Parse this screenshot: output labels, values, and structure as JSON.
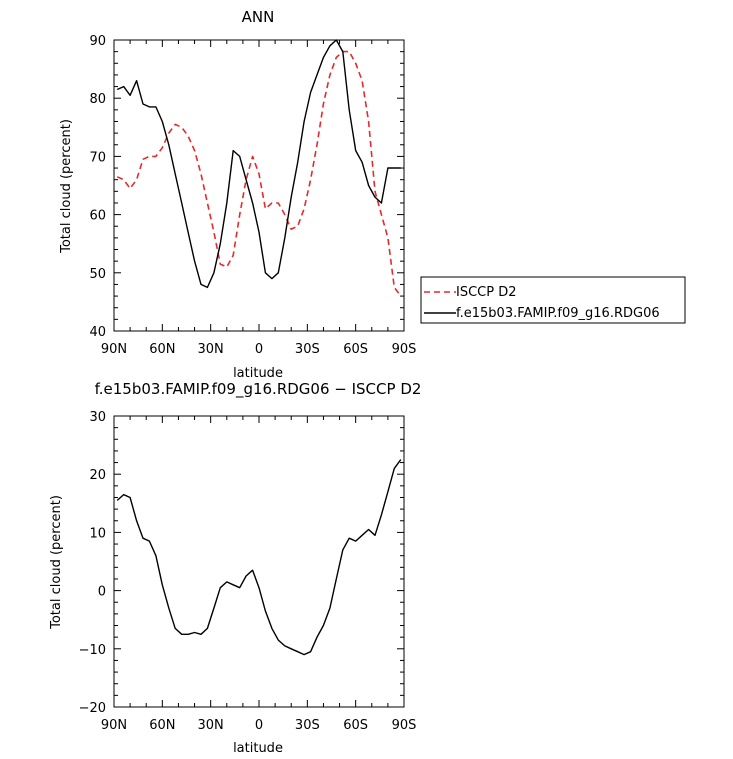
{
  "chart_data": [
    {
      "type": "line",
      "title": "ANN",
      "xlabel": "latitude",
      "ylabel": "Total cloud (percent)",
      "xlim": [
        90,
        -90
      ],
      "ylim": [
        40,
        90
      ],
      "x_ticks": [
        90,
        60,
        30,
        0,
        -30,
        -60,
        -90
      ],
      "x_tick_labels": [
        "90N",
        "60N",
        "30N",
        "0",
        "30S",
        "60S",
        "90S"
      ],
      "y_ticks": [
        40,
        50,
        60,
        70,
        80,
        90
      ],
      "y_tick_labels": [
        "40",
        "50",
        "60",
        "70",
        "80",
        "90"
      ],
      "grid": false,
      "legend_position": "right",
      "series": [
        {
          "name": "ISCCP D2",
          "color": "#e8292c",
          "style": "dashed",
          "x": [
            88,
            84,
            80,
            76,
            72,
            68,
            64,
            60,
            56,
            52,
            48,
            44,
            40,
            36,
            32,
            28,
            24,
            20,
            16,
            12,
            8,
            4,
            0,
            -4,
            -8,
            -12,
            -16,
            -20,
            -24,
            -28,
            -32,
            -36,
            -40,
            -44,
            -48,
            -52,
            -56,
            -60,
            -64,
            -68,
            -72,
            -76,
            -80,
            -84,
            -88
          ],
          "y": [
            66.5,
            66,
            64.5,
            66,
            69.5,
            70,
            70,
            71.5,
            74,
            75.5,
            75,
            73.5,
            71,
            67,
            62,
            57,
            51.5,
            51,
            53,
            60,
            66,
            70,
            67,
            61,
            62,
            62,
            60,
            57.5,
            58,
            61,
            66,
            72,
            79,
            84,
            87,
            88,
            88,
            86,
            83,
            76,
            64,
            60,
            56,
            47.5,
            46
          ]
        },
        {
          "name": "f.e15b03.FAMIP.f09_g16.RDG06",
          "color": "#000000",
          "style": "solid",
          "x": [
            88,
            84,
            80,
            76,
            72,
            68,
            64,
            60,
            56,
            52,
            48,
            44,
            40,
            36,
            32,
            28,
            24,
            20,
            16,
            12,
            8,
            4,
            0,
            -4,
            -8,
            -12,
            -16,
            -20,
            -24,
            -28,
            -32,
            -36,
            -40,
            -44,
            -48,
            -52,
            -56,
            -60,
            -64,
            -68,
            -72,
            -76,
            -80,
            -84,
            -88
          ],
          "y": [
            81.5,
            82,
            80.5,
            83,
            79,
            78.5,
            78.5,
            76,
            72,
            67,
            62,
            57,
            52,
            48,
            47.5,
            50,
            55,
            62,
            71,
            70,
            66,
            62,
            57,
            50,
            49,
            50,
            56,
            63,
            69,
            76,
            81,
            84,
            87,
            89,
            90,
            88,
            78,
            71,
            69,
            65,
            63,
            62,
            68,
            68,
            68
          ]
        }
      ]
    },
    {
      "type": "line",
      "title": "f.e15b03.FAMIP.f09_g16.RDG06 − ISCCP D2",
      "xlabel": "latitude",
      "ylabel": "Total cloud (percent)",
      "xlim": [
        90,
        -90
      ],
      "ylim": [
        -20,
        30
      ],
      "x_ticks": [
        90,
        60,
        30,
        0,
        -30,
        -60,
        -90
      ],
      "x_tick_labels": [
        "90N",
        "60N",
        "30N",
        "0",
        "30S",
        "60S",
        "90S"
      ],
      "y_ticks": [
        -20,
        -10,
        0,
        10,
        20,
        30
      ],
      "y_tick_labels": [
        "−20",
        "−10",
        "0",
        "10",
        "20",
        "30"
      ],
      "grid": false,
      "series": [
        {
          "color": "#000000",
          "style": "solid",
          "x": [
            88,
            84,
            80,
            76,
            72,
            68,
            64,
            60,
            56,
            52,
            48,
            44,
            40,
            36,
            32,
            28,
            24,
            20,
            16,
            12,
            8,
            4,
            0,
            -4,
            -8,
            -12,
            -16,
            -20,
            -24,
            -28,
            -32,
            -36,
            -40,
            -44,
            -48,
            -52,
            -56,
            -60,
            -64,
            -68,
            -72,
            -76,
            -80,
            -84,
            -88
          ],
          "y": [
            15.5,
            16.5,
            16,
            12,
            9,
            8.5,
            6,
            1,
            -3,
            -6.5,
            -7.5,
            -7.5,
            -7.2,
            -7.5,
            -6.5,
            -3,
            0.5,
            1.5,
            1,
            0.5,
            2.5,
            3.5,
            0.5,
            -3.5,
            -6.5,
            -8.5,
            -9.5,
            -10,
            -10.5,
            -11,
            -10.5,
            -8,
            -6,
            -3,
            2,
            7,
            9,
            8.5,
            9.5,
            10.5,
            9.5,
            13,
            17,
            21,
            22.5
          ]
        }
      ]
    }
  ]
}
